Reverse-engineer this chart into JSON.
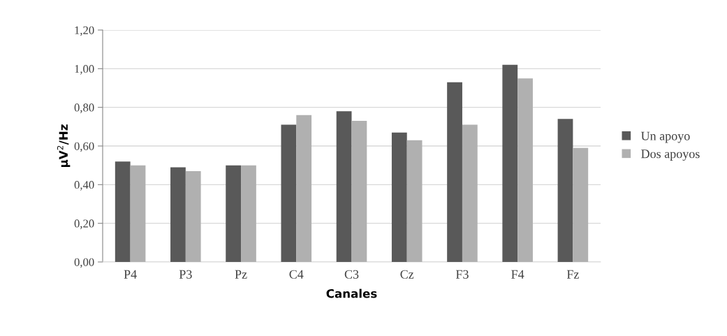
{
  "chart_data": {
    "type": "bar",
    "xlabel": "Canales",
    "ylabel": "μV$^{2}$/Hz",
    "categories": [
      "P4",
      "P3",
      "Pz",
      "C4",
      "C3",
      "Cz",
      "F3",
      "F4",
      "Fz"
    ],
    "series": [
      {
        "name": "Un apoyo",
        "color": "#595959",
        "values": [
          0.52,
          0.49,
          0.5,
          0.71,
          0.78,
          0.67,
          0.93,
          1.02,
          0.74
        ]
      },
      {
        "name": "Dos apoyos",
        "color": "#b0b0b0",
        "values": [
          0.5,
          0.47,
          0.5,
          0.76,
          0.73,
          0.63,
          0.71,
          0.95,
          0.59
        ]
      }
    ],
    "ylim": [
      0,
      1.2
    ],
    "yticks": [
      {
        "value": 0,
        "label": "0,00"
      },
      {
        "value": 0.2,
        "label": "0,20"
      },
      {
        "value": 0.4,
        "label": "0,40"
      },
      {
        "value": 0.6,
        "label": "0,60"
      },
      {
        "value": 0.8,
        "label": "0,80"
      },
      {
        "value": 1.0,
        "label": "1,00"
      },
      {
        "value": 1.2,
        "label": "1,20"
      }
    ],
    "grid": "y",
    "legend": "right"
  }
}
